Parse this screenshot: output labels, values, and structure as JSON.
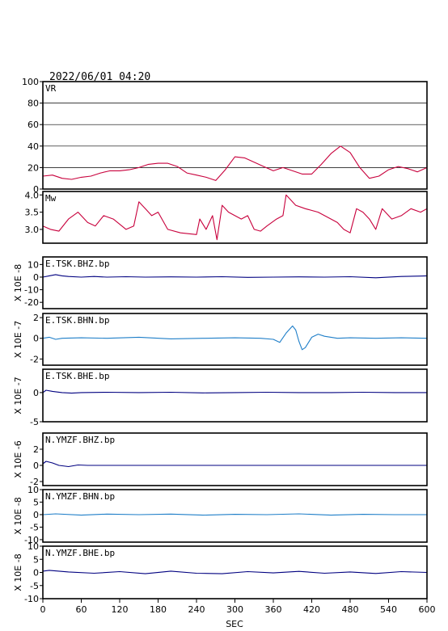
{
  "header": {
    "timestamp": "2022/06/01  04:20"
  },
  "chart_data": [
    {
      "type": "line",
      "label": "VR",
      "ylim": [
        0,
        100
      ],
      "yticks": [
        "100",
        "80",
        "60",
        "40",
        "20",
        "0"
      ],
      "grid": true,
      "color": "#c8003c",
      "series": [
        {
          "x": [
            0,
            15,
            30,
            45,
            60,
            75,
            90,
            105,
            120,
            135,
            150,
            165,
            180,
            195,
            210,
            225,
            240,
            255,
            270,
            285,
            300,
            315,
            330,
            345,
            360,
            375,
            390,
            405,
            420,
            435,
            450,
            465,
            480,
            495,
            510,
            525,
            540,
            555,
            570,
            585,
            600
          ],
          "values": [
            12,
            13,
            10,
            9,
            11,
            12,
            15,
            17,
            17,
            18,
            20,
            23,
            24,
            24,
            21,
            15,
            13,
            11,
            8,
            18,
            30,
            29,
            25,
            21,
            17,
            20,
            17,
            14,
            14,
            23,
            33,
            40,
            34,
            20,
            10,
            12,
            18,
            21,
            19,
            16,
            20
          ]
        }
      ]
    },
    {
      "type": "line",
      "label": "Mw",
      "ylim": [
        2.6,
        4.1
      ],
      "yticks": [
        "4.0",
        "3.5",
        "3.0"
      ],
      "color": "#c8003c",
      "series": [
        {
          "x": [
            0,
            12,
            25,
            40,
            55,
            70,
            82,
            95,
            110,
            130,
            142,
            150,
            160,
            170,
            180,
            195,
            215,
            240,
            245,
            255,
            265,
            272,
            280,
            290,
            300,
            310,
            320,
            330,
            340,
            350,
            365,
            375,
            380,
            395,
            410,
            430,
            450,
            460,
            470,
            480,
            490,
            500,
            510,
            520,
            530,
            545,
            560,
            575,
            590,
            600
          ],
          "values": [
            3.1,
            3.0,
            2.95,
            3.3,
            3.5,
            3.2,
            3.1,
            3.4,
            3.3,
            3.0,
            3.1,
            3.8,
            3.6,
            3.4,
            3.5,
            3.0,
            2.9,
            2.85,
            3.3,
            3.0,
            3.4,
            2.7,
            3.7,
            3.5,
            3.4,
            3.3,
            3.4,
            3.0,
            2.95,
            3.1,
            3.3,
            3.4,
            4.0,
            3.7,
            3.6,
            3.5,
            3.3,
            3.2,
            3.0,
            2.9,
            3.6,
            3.5,
            3.3,
            3.0,
            3.6,
            3.3,
            3.4,
            3.6,
            3.5,
            3.6
          ]
        }
      ]
    },
    {
      "type": "line",
      "label": "E.TSK.BHZ.bp",
      "ylabel": "X 10E -8",
      "ylim": [
        -25,
        16
      ],
      "yticks": [
        "10",
        "0",
        "-10",
        "-20"
      ],
      "color": "#000080",
      "series": [
        {
          "x": [
            0,
            10,
            20,
            30,
            40,
            60,
            80,
            100,
            130,
            160,
            200,
            240,
            280,
            320,
            360,
            400,
            440,
            480,
            520,
            560,
            590,
            600
          ],
          "values": [
            0,
            1,
            2,
            1,
            0.5,
            0,
            0.5,
            0,
            0.3,
            0,
            0.2,
            0,
            0.3,
            -0.2,
            0,
            0.2,
            0,
            0.3,
            -0.5,
            0.5,
            0.8,
            1
          ]
        }
      ]
    },
    {
      "type": "line",
      "label": "E.TSK.BHN.bp",
      "ylabel": "X 10E -7",
      "ylim": [
        -2.6,
        2.4
      ],
      "yticks": [
        "2",
        "0",
        "-2"
      ],
      "color": "#1e7ec8",
      "series": [
        {
          "x": [
            0,
            10,
            20,
            30,
            60,
            100,
            150,
            200,
            250,
            300,
            340,
            360,
            370,
            380,
            390,
            395,
            400,
            405,
            410,
            420,
            430,
            440,
            460,
            480,
            520,
            560,
            600
          ],
          "values": [
            0,
            0.1,
            -0.1,
            0,
            0.05,
            0,
            0.1,
            -0.05,
            0,
            0.05,
            0,
            -0.1,
            -0.4,
            0.5,
            1.2,
            0.8,
            -0.3,
            -1.1,
            -0.9,
            0.1,
            0.4,
            0.2,
            0,
            0.05,
            0,
            0.05,
            0
          ]
        }
      ]
    },
    {
      "type": "line",
      "label": "E.TSK.BHE.bp",
      "ylabel": "X 10E -7",
      "ylim": [
        -5,
        4
      ],
      "yticks": [
        "0",
        "-5"
      ],
      "color": "#000080",
      "series": [
        {
          "x": [
            0,
            5,
            15,
            30,
            45,
            60,
            100,
            150,
            200,
            250,
            300,
            350,
            400,
            450,
            500,
            550,
            600
          ],
          "values": [
            0,
            0.4,
            0.2,
            0,
            -0.1,
            0,
            0.05,
            0,
            0.05,
            -0.05,
            0,
            0.05,
            0,
            0,
            0.05,
            0,
            0
          ]
        }
      ]
    },
    {
      "type": "line",
      "label": "N.YMZF.BHZ.bp",
      "ylabel": "X 10E -6",
      "ylim": [
        -2.5,
        4
      ],
      "yticks": [
        "2",
        "0",
        "-2"
      ],
      "color": "#000080",
      "series": [
        {
          "x": [
            0,
            5,
            15,
            25,
            40,
            55,
            70,
            85,
            600
          ],
          "values": [
            0.2,
            0.5,
            0.3,
            0,
            -0.15,
            0.05,
            0,
            0,
            0
          ]
        }
      ]
    },
    {
      "type": "line",
      "label": "N.YMZF.BHN.bp",
      "ylabel": "X 10E -8",
      "ylim": [
        -11,
        10
      ],
      "yticks": [
        "10",
        "5",
        "0",
        "-5",
        "-10"
      ],
      "color": "#1e7ec8",
      "series": [
        {
          "x": [
            0,
            20,
            60,
            100,
            150,
            200,
            250,
            300,
            350,
            400,
            450,
            500,
            550,
            600
          ],
          "values": [
            0,
            0.3,
            -0.2,
            0.2,
            0,
            0.2,
            -0.2,
            0.1,
            0,
            0.3,
            -0.2,
            0.1,
            0,
            0
          ]
        }
      ]
    },
    {
      "type": "line",
      "label": "N.YMZF.BHE.bp",
      "ylabel": "X 10E -8",
      "ylim": [
        -10,
        10
      ],
      "yticks": [
        "10",
        "5",
        "0",
        "-5",
        "-10"
      ],
      "color": "#000080",
      "series": [
        {
          "x": [
            0,
            10,
            40,
            80,
            120,
            160,
            200,
            240,
            280,
            320,
            360,
            400,
            440,
            480,
            520,
            560,
            600
          ],
          "values": [
            0.5,
            0.8,
            0.2,
            -0.3,
            0.3,
            -0.5,
            0.5,
            -0.3,
            -0.5,
            0.3,
            -0.2,
            0.4,
            -0.3,
            0.2,
            -0.4,
            0.3,
            0
          ]
        }
      ]
    }
  ],
  "x_axis": {
    "label": "SEC",
    "xlim": [
      0,
      600
    ],
    "ticks": [
      "0",
      "60",
      "120",
      "180",
      "240",
      "300",
      "360",
      "420",
      "480",
      "540",
      "600"
    ]
  }
}
